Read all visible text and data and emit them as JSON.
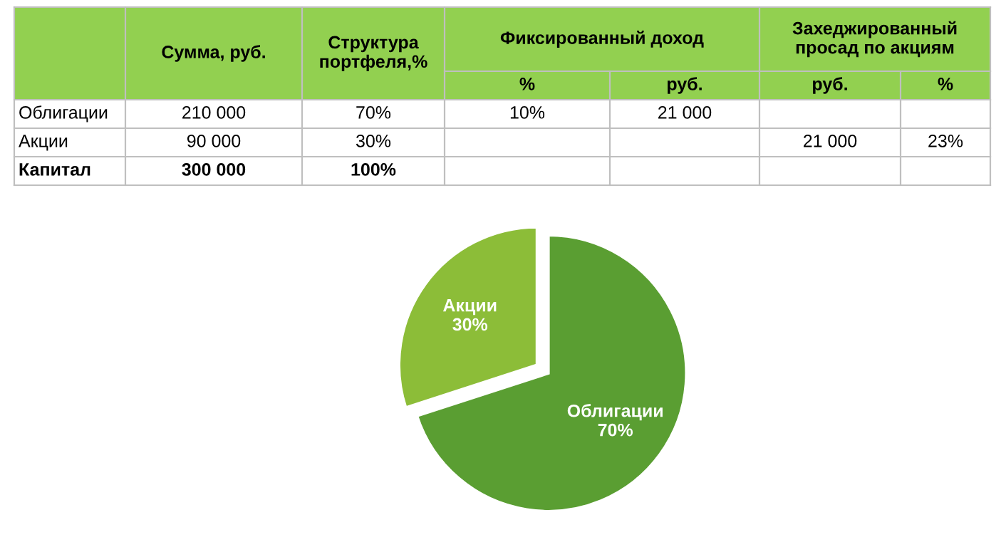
{
  "chart_data": [
    {
      "type": "other",
      "categories": [
        "Сумма, руб.",
        "Структура портфеля,%",
        "%",
        "руб.",
        "руб.",
        "%"
      ],
      "annotations": [
        "Фиксированный доход",
        "Захеджированный просад по акциям"
      ],
      "y_categories": [
        "Облигации",
        "Акции",
        "Капитал"
      ],
      "cell_labels": [
        [
          "210 000",
          "70%",
          "10%",
          "21 000",
          null,
          null
        ],
        [
          "90 000",
          "30%",
          null,
          null,
          "21 000",
          "23%"
        ],
        [
          "300 000",
          "100%",
          null,
          null,
          null,
          null
        ]
      ]
    },
    {
      "type": "pie",
      "categories": [
        "Облигации",
        "Акции"
      ],
      "values": [
        70,
        30
      ],
      "colors": [
        "#5a9e32",
        "#8cbd38"
      ],
      "value_labels": [
        "70%",
        "30%"
      ]
    }
  ]
}
